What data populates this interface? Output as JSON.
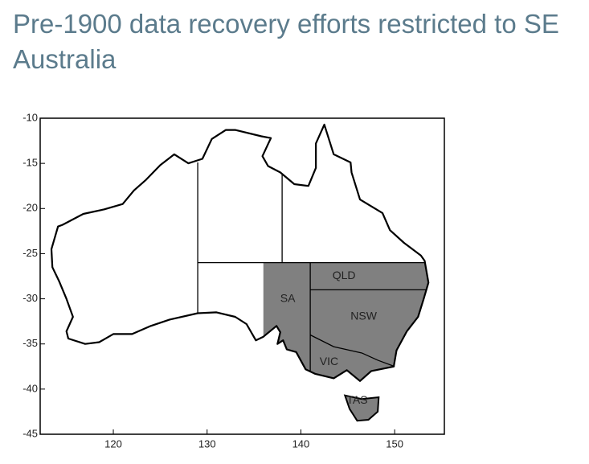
{
  "header": {
    "title": "Pre-1900 data recovery efforts restricted to SE Australia"
  },
  "map": {
    "xlim": [
      112.2,
      155.3
    ],
    "ylim": [
      -45,
      -10
    ],
    "xticks": [
      120,
      130,
      140,
      150
    ],
    "yticks": [
      -10,
      -15,
      -20,
      -25,
      -30,
      -35,
      -40,
      -45
    ],
    "regions": [
      {
        "label": "SA"
      },
      {
        "label": "QLD"
      },
      {
        "label": "NSW"
      },
      {
        "label": "VIC"
      },
      {
        "label": "TAS"
      }
    ]
  }
}
